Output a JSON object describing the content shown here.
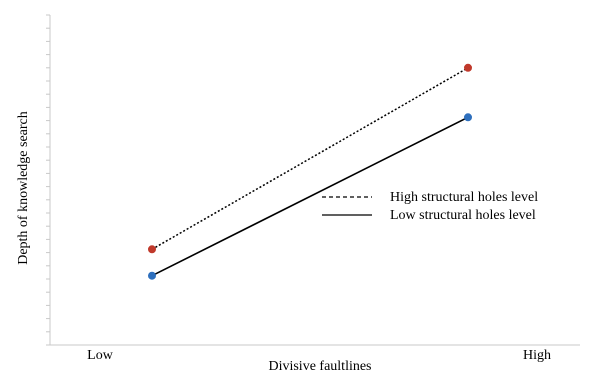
{
  "chart_data": {
    "type": "line",
    "title": "",
    "xlabel": "Divisive faultlines",
    "ylabel": "Depth of knowledge search",
    "categories": [
      "Low",
      "High"
    ],
    "series": [
      {
        "name": "High structural holes level",
        "values": [
          0.29,
          0.84
        ],
        "line_style": "dotted",
        "line_color": "#000000",
        "marker_color": "#c0392b"
      },
      {
        "name": "Low structural holes level",
        "values": [
          0.21,
          0.69
        ],
        "line_style": "solid",
        "line_color": "#000000",
        "marker_color": "#2e6fbd"
      }
    ],
    "ylim": [
      0,
      1
    ],
    "y_tick_count": 25,
    "grid": false,
    "legend_position": "center-right"
  }
}
